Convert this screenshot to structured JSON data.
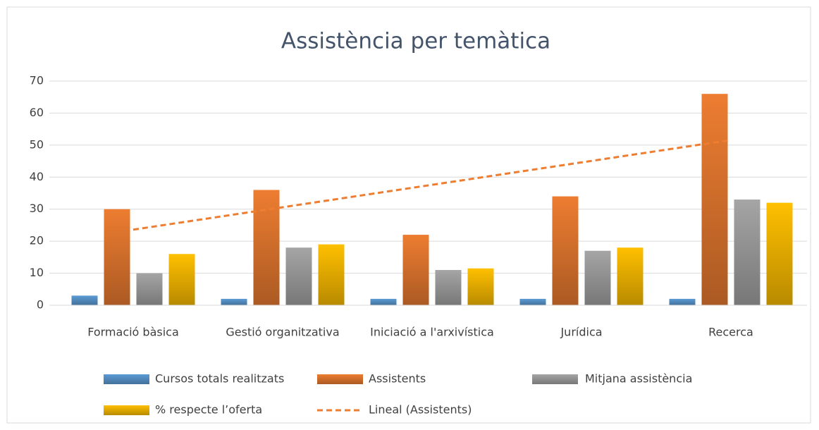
{
  "chart_data": {
    "type": "bar",
    "title": "Assistència per temàtica",
    "categories": [
      "Formació bàsica",
      "Gestió organitzativa",
      "Iniciació a l'arxivística",
      "Jurídica",
      "Recerca"
    ],
    "series": [
      {
        "name": "Cursos totals realitzats",
        "color": "#5b9bd5",
        "values": [
          3,
          2,
          2,
          2,
          2
        ]
      },
      {
        "name": "Assistents",
        "color": "#ed7d31",
        "values": [
          30,
          36,
          22,
          34,
          66
        ]
      },
      {
        "name": "Mitjana assistència",
        "color": "#a5a5a5",
        "values": [
          10,
          18,
          11,
          17,
          33
        ]
      },
      {
        "name": "% respecte l’oferta",
        "color": "#ffc000",
        "values": [
          16,
          19,
          11.5,
          18,
          32
        ]
      },
      {
        "name": "Lineal (Assistents)",
        "color": "#ed7d31",
        "type": "line",
        "dashed": true,
        "values": [
          23.6,
          30.6,
          37.6,
          44.6,
          51.6
        ]
      }
    ],
    "ylim": [
      0,
      70
    ],
    "yticks": [
      0,
      10,
      20,
      30,
      40,
      50,
      60,
      70
    ],
    "grid": true,
    "legend": "bottom"
  }
}
